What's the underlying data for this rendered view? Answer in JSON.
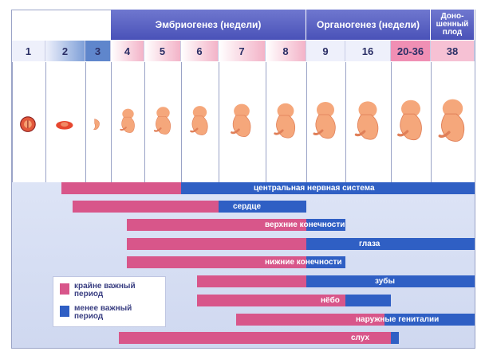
{
  "header": {
    "embryogenesis": "Эмбриогенез (недели)",
    "organogenesis": "Органогенез (недели)",
    "full_term": "Доно-\nшенный\nплод"
  },
  "weeks": [
    "1",
    "2",
    "3",
    "4",
    "5",
    "6",
    "7",
    "8",
    "9",
    "16",
    "20-36",
    "38"
  ],
  "stage_icons": [
    "zygote-icon",
    "embryo-disc-icon",
    "early-embryo-icon",
    "embryo-week4-icon",
    "embryo-week5-icon",
    "embryo-week6-icon",
    "embryo-week7-icon",
    "embryo-week8-icon",
    "fetus-week9-icon",
    "fetus-week16-icon",
    "fetus-week20-36-icon",
    "fetus-week38-icon"
  ],
  "periods": [
    {
      "label": "центральная нервная система",
      "critical_weeks": [
        3,
        5
      ],
      "less_critical_weeks": [
        6,
        38
      ]
    },
    {
      "label": "сердце",
      "critical_weeks": [
        3,
        6
      ],
      "less_critical_weeks": [
        6,
        8
      ]
    },
    {
      "label": "верхние конечности",
      "critical_weeks": [
        4,
        8
      ],
      "less_critical_weeks": [
        8,
        9
      ]
    },
    {
      "label": "глаза",
      "critical_weeks": [
        4,
        8
      ],
      "less_critical_weeks": [
        8,
        38
      ]
    },
    {
      "label": "нижние конечности",
      "critical_weeks": [
        4,
        8
      ],
      "less_critical_weeks": [
        8,
        9
      ]
    },
    {
      "label": "зубы",
      "critical_weeks": [
        6,
        8
      ],
      "less_critical_weeks": [
        9,
        38
      ]
    },
    {
      "label": "нёбо",
      "critical_weeks": [
        6,
        9
      ],
      "less_critical_weeks": [
        9,
        16
      ]
    },
    {
      "label": "наружные гениталии",
      "critical_weeks": [
        7,
        16
      ],
      "less_critical_weeks": [
        16,
        38
      ]
    },
    {
      "label": "слух",
      "critical_weeks": [
        4,
        16
      ],
      "less_critical_weeks": [
        16,
        20
      ]
    }
  ],
  "legend": {
    "critical": "крайне важный период",
    "less_critical": "менее важный период"
  },
  "colors": {
    "header": "#5a62c2",
    "week_highlight": "#f3b3c8",
    "critical": "#d8568a",
    "less_critical": "#2f5fc4",
    "background": "#d6def3"
  }
}
